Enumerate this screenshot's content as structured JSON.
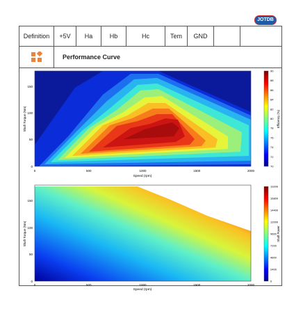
{
  "logo_text": "JOTDB",
  "header": {
    "cells": [
      "Definition",
      "+5V",
      "Ha",
      "Hb",
      "Hc",
      "Tem",
      "GND",
      "",
      ""
    ]
  },
  "section": {
    "icon": "grid-blocks-icon",
    "title": "Performance Curve"
  },
  "colors": {
    "accent": "#e9843a",
    "border": "#555555"
  },
  "chart_data": [
    {
      "type": "heatmap",
      "title": "",
      "xlabel": "Speed (rpm)",
      "ylabel": "Shaft Torque (Nm)",
      "xticks": [
        "0",
        "500",
        "1000",
        "1500",
        "2000"
      ],
      "yticks": [
        "0",
        "50",
        "100",
        "150"
      ],
      "xlim": [
        0,
        2000
      ],
      "ylim": [
        0,
        180
      ],
      "colorbar_label": "Efficiency (%)",
      "colorbar_ticks": [
        "90",
        "88",
        "86",
        "84",
        "82",
        "80",
        "78",
        "76",
        "74",
        "72",
        "70"
      ],
      "colorbar_range": [
        70,
        90
      ]
    },
    {
      "type": "heatmap",
      "title": "",
      "xlabel": "Speed (rpm)",
      "ylabel": "Shaft Torque (Nm)",
      "xticks": [
        "0",
        "500",
        "1000",
        "1500",
        "2000"
      ],
      "yticks": [
        "0",
        "50",
        "100",
        "150"
      ],
      "xlim": [
        0,
        2000
      ],
      "ylim": [
        0,
        180
      ],
      "colorbar_label": "Shaft Power",
      "colorbar_ticks": [
        "19200",
        "16800",
        "14400",
        "12000",
        "9600",
        "7200",
        "4800",
        "2400",
        "0"
      ],
      "colorbar_range": [
        0,
        19200
      ]
    }
  ]
}
